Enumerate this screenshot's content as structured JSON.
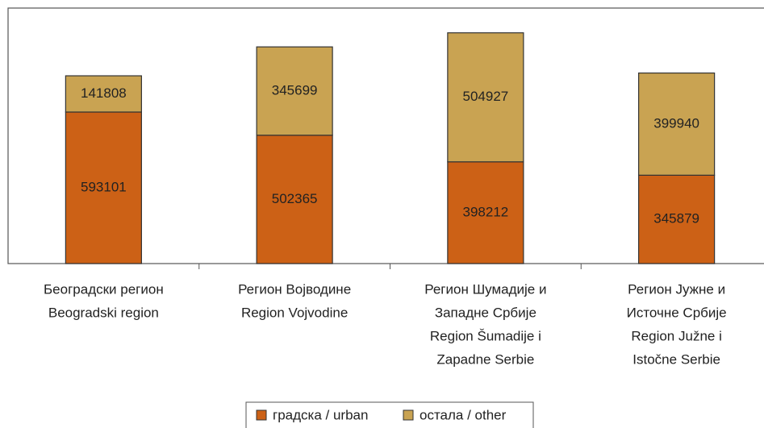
{
  "chart_data": {
    "type": "stacked_bar",
    "categories": [
      [
        "Београдски регион",
        "Beogradski region"
      ],
      [
        "Регион Војводине",
        "Region Vojvodine"
      ],
      [
        "Регион Шумадије и",
        "Западне Србије",
        "Region Šumadije i",
        "Zapadne Serbie"
      ],
      [
        "Регион Јужне и",
        "Источне Србије",
        "Region Južne i",
        "Istočne Serbie"
      ]
    ],
    "series": [
      {
        "name": "градска / urban",
        "color": "#cc6116",
        "values": [
          593101,
          502365,
          398212,
          345879
        ]
      },
      {
        "name": "остала / other",
        "color": "#c9a352",
        "values": [
          141808,
          345699,
          504927,
          399940
        ]
      }
    ],
    "ylim": [
      0,
      1000000
    ],
    "legend": "bottom"
  }
}
